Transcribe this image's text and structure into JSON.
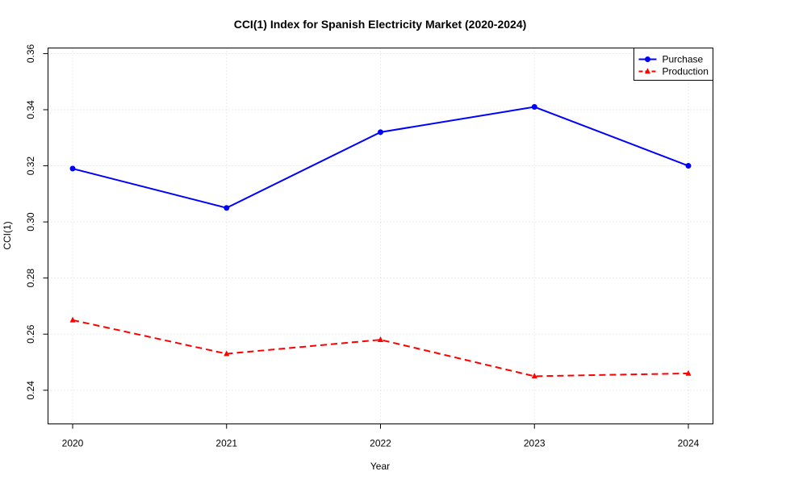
{
  "chart_data": {
    "type": "line",
    "title": "CCI(1) Index for Spanish Electricity Market (2020-2024)",
    "xlabel": "Year",
    "ylabel": "CCI(1)",
    "x": [
      2020,
      2021,
      2022,
      2023,
      2024
    ],
    "x_tick_labels": [
      "2020",
      "2021",
      "2022",
      "2023",
      "2024"
    ],
    "y_ticks": [
      0.24,
      0.26,
      0.28,
      0.3,
      0.32,
      0.34,
      0.36
    ],
    "y_tick_labels": [
      "0.24",
      "0.26",
      "0.28",
      "0.30",
      "0.32",
      "0.34",
      "0.36"
    ],
    "ylim": [
      0.228,
      0.362
    ],
    "xlim": [
      2019.84,
      2024.16
    ],
    "grid": true,
    "legend_position": "top-right",
    "series": [
      {
        "name": "Purchase",
        "values": [
          0.319,
          0.305,
          0.332,
          0.341,
          0.32
        ],
        "color": "#0000ff",
        "line_style": "solid",
        "marker": "circle"
      },
      {
        "name": "Production",
        "values": [
          0.265,
          0.253,
          0.258,
          0.245,
          0.246
        ],
        "color": "#ff0000",
        "line_style": "dashed",
        "marker": "triangle"
      }
    ]
  }
}
